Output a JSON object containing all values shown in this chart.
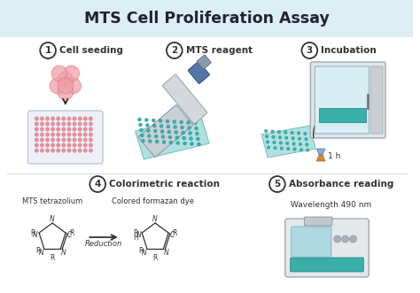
{
  "title": "MTS Cell Proliferation Assay",
  "title_bg": "#ddeef5",
  "bg_color": "#ffffff",
  "title_color": "#222233",
  "dark": "#333333",
  "teal": "#3aafa9",
  "teal_light": "#b0e0e0",
  "pink": "#e8909a",
  "pink_light": "#f5d0d8",
  "gray_body": "#d8dcdf",
  "gray_mid": "#b8bec4",
  "blue_handle": "#5577aa",
  "step1_label": "Cell seeding",
  "step2_label": "MTS reagent",
  "step3_label": "Incubation",
  "step4_label": "Colorimetric reaction",
  "step5_label": "Absorbance reading",
  "time_label": "1 h",
  "wavelength_label": "Wavelength 490 nm",
  "mts_label": "MTS tetrazolium",
  "formazan_label": "Colored formazan dye",
  "reduction_label": "Reduction"
}
